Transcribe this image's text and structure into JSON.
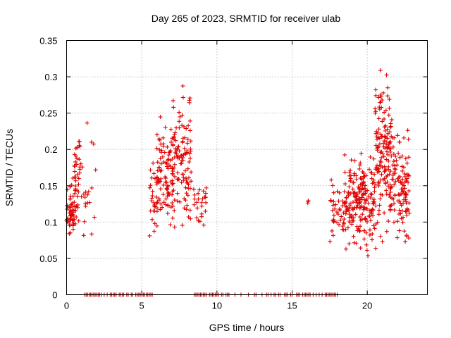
{
  "chart_data": {
    "type": "scatter",
    "title": "Day 265 of 2023, SRMTID for receiver ulab",
    "xlabel": "GPS time / hours",
    "ylabel": "SRMTID / TECUs",
    "xlim": [
      0,
      24
    ],
    "ylim": [
      0,
      0.35
    ],
    "xticks": [
      0,
      5,
      10,
      15,
      20
    ],
    "xtick_labels": [
      "0",
      "5",
      "10",
      "15",
      "20"
    ],
    "yticks": [
      0,
      0.05,
      0.1,
      0.15,
      0.2,
      0.25,
      0.3,
      0.35
    ],
    "ytick_labels": [
      "0",
      "0.05",
      "0.1",
      "0.15",
      "0.2",
      "0.25",
      "0.3",
      "0.35"
    ],
    "grid": true,
    "marker": "+",
    "series": [
      {
        "name": "SRMTID",
        "color": "#e00000",
        "clusters": [
          {
            "x0": 0.0,
            "x1": 0.6,
            "y0": 0.062,
            "y1": 0.17,
            "n": 55,
            "seed": 11
          },
          {
            "x0": 0.5,
            "x1": 1.1,
            "y0": 0.065,
            "y1": 0.28,
            "n": 40,
            "seed": 12
          },
          {
            "x0": 1.1,
            "x1": 2.1,
            "y0": 0.05,
            "y1": 0.26,
            "n": 18,
            "seed": 13
          },
          {
            "x0": 5.5,
            "x1": 6.3,
            "y0": 0.065,
            "y1": 0.2,
            "n": 35,
            "seed": 21
          },
          {
            "x0": 6.0,
            "x1": 7.2,
            "y0": 0.08,
            "y1": 0.27,
            "n": 90,
            "seed": 22
          },
          {
            "x0": 7.0,
            "x1": 8.3,
            "y0": 0.055,
            "y1": 0.32,
            "n": 110,
            "seed": 23
          },
          {
            "x0": 8.4,
            "x1": 9.3,
            "y0": 0.07,
            "y1": 0.18,
            "n": 25,
            "seed": 24
          },
          {
            "x0": 16.0,
            "x1": 16.1,
            "y0": 0.115,
            "y1": 0.14,
            "n": 3,
            "seed": 31
          },
          {
            "x0": 17.5,
            "x1": 18.5,
            "y0": 0.055,
            "y1": 0.175,
            "n": 40,
            "seed": 41
          },
          {
            "x0": 18.5,
            "x1": 20.5,
            "y0": 0.045,
            "y1": 0.21,
            "n": 200,
            "seed": 42
          },
          {
            "x0": 20.5,
            "x1": 21.6,
            "y0": 0.04,
            "y1": 0.33,
            "n": 150,
            "seed": 43
          },
          {
            "x0": 21.6,
            "x1": 22.8,
            "y0": 0.035,
            "y1": 0.265,
            "n": 110,
            "seed": 44
          }
        ],
        "zero_points": [
          1.2,
          1.3,
          1.4,
          1.5,
          1.6,
          1.7,
          1.8,
          1.9,
          2.0,
          2.1,
          2.2,
          2.3,
          2.5,
          2.7,
          2.9,
          3.0,
          3.1,
          3.2,
          3.3,
          3.5,
          3.6,
          3.7,
          3.8,
          4.0,
          4.1,
          4.3,
          4.4,
          4.6,
          4.7,
          4.8,
          4.9,
          5.0,
          5.1,
          5.2,
          5.3,
          5.4,
          5.5,
          5.6,
          5.7,
          8.5,
          8.6,
          8.7,
          8.8,
          8.9,
          9.0,
          9.1,
          9.2,
          9.3,
          9.5,
          9.6,
          9.7,
          9.8,
          9.9,
          10.0,
          10.1,
          10.3,
          10.4,
          10.6,
          10.7,
          10.8,
          11.2,
          11.6,
          12.1,
          12.5,
          12.6,
          13.0,
          13.3,
          13.4,
          13.6,
          13.8,
          13.9,
          14.1,
          14.2,
          14.5,
          14.6,
          14.7,
          14.9,
          15.0,
          15.3,
          15.4,
          15.5,
          15.7,
          15.8,
          15.9,
          16.0,
          16.1,
          16.2,
          16.4,
          16.6,
          16.8,
          17.0,
          17.2,
          17.3,
          17.4,
          17.5,
          17.6,
          17.7,
          17.8,
          17.9,
          18.0
        ]
      }
    ]
  }
}
